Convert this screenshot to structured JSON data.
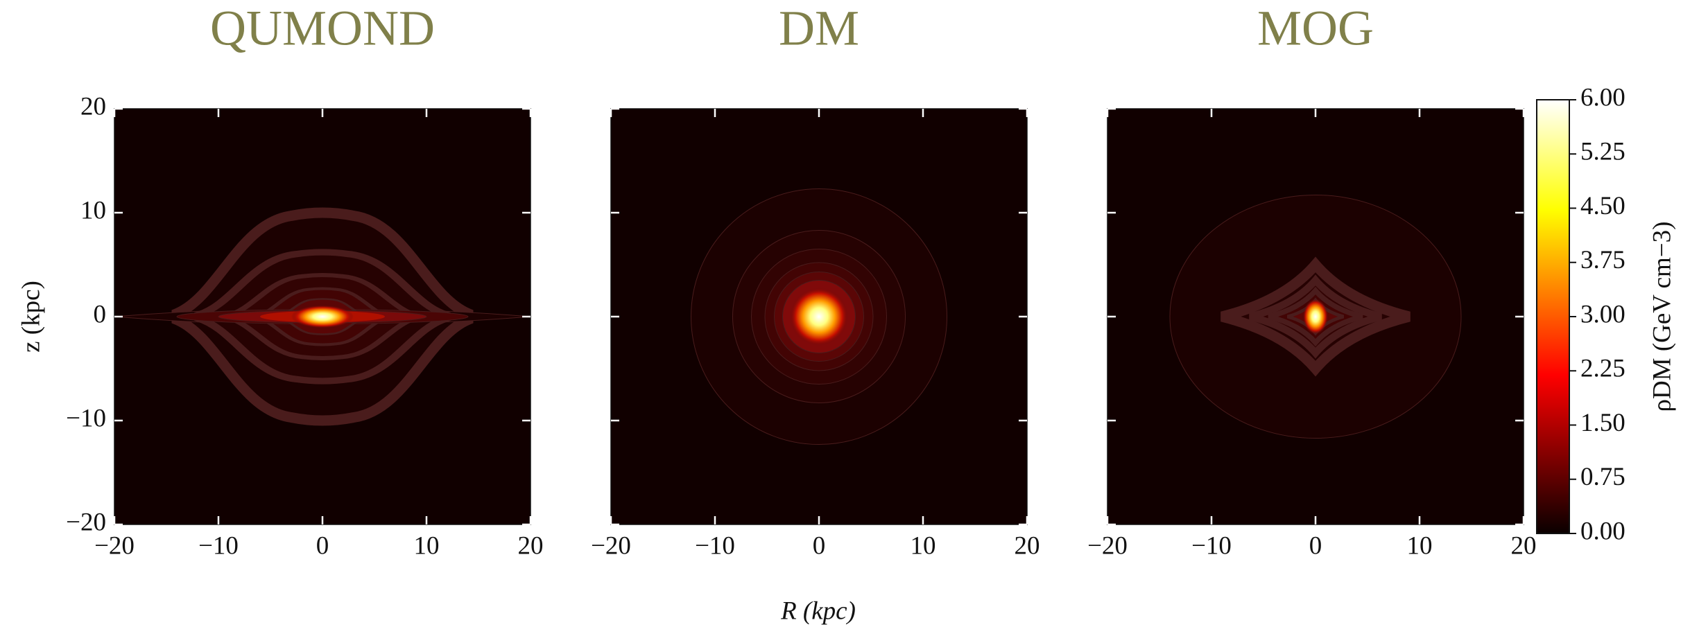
{
  "chart_data": [
    {
      "type": "contour",
      "title": "QUMOND",
      "xlim": [
        -20,
        20
      ],
      "ylim": [
        -20,
        20
      ],
      "xticks": [
        {
          "value": -20,
          "label": "−20"
        },
        {
          "value": -10,
          "label": "−10"
        },
        0,
        10,
        20
      ],
      "yticks": [
        {
          "value": -20,
          "label": "−20"
        },
        {
          "value": -10,
          "label": "−10"
        },
        0,
        10,
        20
      ],
      "ytick_labels": true,
      "colormap": "hot"
    },
    {
      "type": "contour",
      "title": "DM",
      "xlim": [
        -20,
        20
      ],
      "ylim": [
        -20,
        20
      ],
      "xticks": [
        {
          "value": -20,
          "label": "−20"
        },
        {
          "value": -10,
          "label": "−10"
        },
        0,
        10,
        20
      ],
      "yticks": [
        -20,
        -10,
        0,
        10,
        20
      ],
      "ytick_labels": false,
      "colormap": "hot"
    },
    {
      "type": "contour",
      "title": "MOG",
      "xlim": [
        -20,
        20
      ],
      "ylim": [
        -20,
        20
      ],
      "xticks": [
        {
          "value": -20,
          "label": "−20"
        },
        {
          "value": -10,
          "label": "−10"
        },
        0,
        10,
        20
      ],
      "yticks": [
        -20,
        -10,
        0,
        10,
        20
      ],
      "ytick_labels": false,
      "colormap": "hot"
    }
  ],
  "figure": {
    "xlabel": "R (kpc)",
    "ylabel": "z (kpc)",
    "colorbar": {
      "label": "ρDM (GeV cm−3)",
      "lim": [
        0,
        6
      ],
      "ticks": [
        {
          "value": 0,
          "label": "0.00"
        },
        {
          "value": 0.75,
          "label": "0.75"
        },
        {
          "value": 1.5,
          "label": "1.50"
        },
        {
          "value": 2.25,
          "label": "2.25"
        },
        {
          "value": 3,
          "label": "3.00"
        },
        {
          "value": 3.75,
          "label": "3.75"
        },
        {
          "value": 4.5,
          "label": "4.50"
        },
        {
          "value": 5.25,
          "label": "5.25"
        },
        {
          "value": 6,
          "label": "6.00"
        }
      ]
    }
  }
}
